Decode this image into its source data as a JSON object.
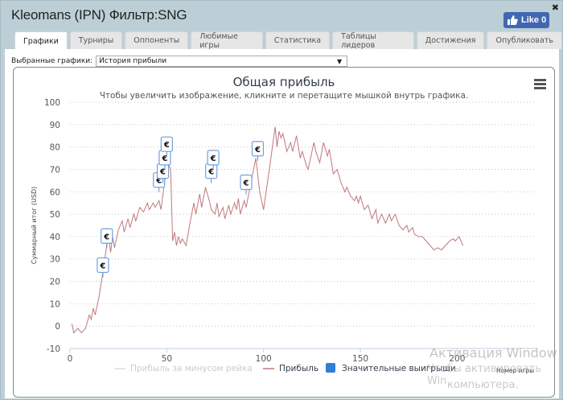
{
  "window": {
    "title": "Kleomans (IPN) Фильтр:SNG",
    "close_label": "✖",
    "like_label": "Like 0"
  },
  "tabs": [
    {
      "label": "Графики",
      "active": true
    },
    {
      "label": "Турниры"
    },
    {
      "label": "Оппоненты"
    },
    {
      "label": "Любимые игры"
    },
    {
      "label": "Статистика"
    },
    {
      "label": "Таблицы лидеров"
    },
    {
      "label": "Достижения"
    },
    {
      "label": "Опубликовать"
    }
  ],
  "selector": {
    "label": "Выбранные графики:",
    "value": "История прибыли",
    "arrow": "▼"
  },
  "watermark": {
    "line1": "Активация Window",
    "line2": "Чтобы активировать Win",
    "line3": "компьютера."
  },
  "chart_data": {
    "type": "line",
    "title": "Общая прибыль",
    "subtitle": "Чтобы увеличить изображение, кликните и перетащите мышкой внутрь графика.",
    "xlabel": "Номер игры",
    "ylabel": "Суммарный итог (USD)",
    "xlim": [
      0,
      240
    ],
    "ylim": [
      -10,
      100
    ],
    "x_ticks": [
      0,
      50,
      100,
      150,
      200
    ],
    "y_ticks": [
      -10,
      0,
      10,
      20,
      30,
      40,
      50,
      60,
      70,
      80,
      90,
      100
    ],
    "grid": true,
    "legend": [
      {
        "name": "Прибыль за минусом рейка",
        "color": "#cccccc",
        "hidden": true
      },
      {
        "name": "Прибыль",
        "color": "#c0787c"
      },
      {
        "name": "Значительные выигрыши",
        "color": "#2f7ed8",
        "marker": "€"
      }
    ],
    "legend_position": "bottom",
    "series": [
      {
        "name": "Прибыль",
        "color": "#c0787c",
        "points": [
          [
            1,
            1
          ],
          [
            2,
            -3
          ],
          [
            4,
            -1
          ],
          [
            6,
            -3
          ],
          [
            8,
            -1
          ],
          [
            10,
            5
          ],
          [
            11,
            3
          ],
          [
            12,
            8
          ],
          [
            13,
            5
          ],
          [
            15,
            13
          ],
          [
            17,
            24
          ],
          [
            18,
            30
          ],
          [
            19,
            36
          ],
          [
            20,
            40
          ],
          [
            21,
            33
          ],
          [
            22,
            40
          ],
          [
            23,
            35
          ],
          [
            25,
            43
          ],
          [
            27,
            47
          ],
          [
            28,
            42
          ],
          [
            30,
            48
          ],
          [
            31,
            44
          ],
          [
            33,
            50
          ],
          [
            34,
            47
          ],
          [
            36,
            53
          ],
          [
            38,
            51
          ],
          [
            40,
            55
          ],
          [
            41,
            52
          ],
          [
            43,
            55
          ],
          [
            44,
            53
          ],
          [
            46,
            56
          ],
          [
            47,
            52
          ],
          [
            49,
            65
          ],
          [
            50,
            69
          ],
          [
            51,
            72
          ],
          [
            52,
            70
          ],
          [
            53,
            38
          ],
          [
            54,
            42
          ],
          [
            55,
            36
          ],
          [
            56,
            40
          ],
          [
            57,
            37
          ],
          [
            58,
            39
          ],
          [
            60,
            36
          ],
          [
            62,
            46
          ],
          [
            64,
            55
          ],
          [
            65,
            50
          ],
          [
            67,
            59
          ],
          [
            68,
            53
          ],
          [
            70,
            62
          ],
          [
            72,
            56
          ],
          [
            73,
            52
          ],
          [
            75,
            50
          ],
          [
            76,
            55
          ],
          [
            77,
            49
          ],
          [
            79,
            53
          ],
          [
            80,
            48
          ],
          [
            82,
            54
          ],
          [
            83,
            50
          ],
          [
            85,
            55
          ],
          [
            86,
            52
          ],
          [
            87,
            57
          ],
          [
            88,
            50
          ],
          [
            90,
            56
          ],
          [
            91,
            53
          ],
          [
            93,
            62
          ],
          [
            96,
            75
          ],
          [
            98,
            60
          ],
          [
            100,
            52
          ],
          [
            103,
            70
          ],
          [
            106,
            89
          ],
          [
            107,
            80
          ],
          [
            108,
            87
          ],
          [
            109,
            84
          ],
          [
            110,
            86
          ],
          [
            112,
            78
          ],
          [
            114,
            82
          ],
          [
            115,
            78
          ],
          [
            117,
            85
          ],
          [
            119,
            75
          ],
          [
            120,
            78
          ],
          [
            122,
            72
          ],
          [
            123,
            70
          ],
          [
            124,
            74
          ],
          [
            126,
            82
          ],
          [
            127,
            78
          ],
          [
            129,
            73
          ],
          [
            131,
            82
          ],
          [
            133,
            76
          ],
          [
            134,
            79
          ],
          [
            136,
            68
          ],
          [
            138,
            70
          ],
          [
            140,
            64
          ],
          [
            142,
            60
          ],
          [
            143,
            62
          ],
          [
            145,
            58
          ],
          [
            147,
            56
          ],
          [
            148,
            58
          ],
          [
            149,
            55
          ],
          [
            150,
            58
          ],
          [
            152,
            52
          ],
          [
            154,
            54
          ],
          [
            156,
            48
          ],
          [
            158,
            52
          ],
          [
            159,
            46
          ],
          [
            161,
            50
          ],
          [
            163,
            46
          ],
          [
            165,
            50
          ],
          [
            166,
            47
          ],
          [
            168,
            50
          ],
          [
            170,
            45
          ],
          [
            172,
            43
          ],
          [
            174,
            45
          ],
          [
            175,
            42
          ],
          [
            177,
            44
          ],
          [
            178,
            41
          ],
          [
            180,
            40
          ],
          [
            182,
            40
          ],
          [
            184,
            38
          ],
          [
            186,
            36
          ],
          [
            188,
            34
          ],
          [
            190,
            35
          ],
          [
            192,
            34
          ],
          [
            194,
            36
          ],
          [
            196,
            38
          ],
          [
            198,
            39
          ],
          [
            199,
            38
          ],
          [
            201,
            40
          ],
          [
            203,
            36
          ]
        ]
      }
    ],
    "markers": [
      {
        "x": 17,
        "y": 24,
        "label": "€"
      },
      {
        "x": 19,
        "y": 37,
        "label": "€"
      },
      {
        "x": 46,
        "y": 62,
        "label": "€"
      },
      {
        "x": 48,
        "y": 66,
        "label": "€"
      },
      {
        "x": 49,
        "y": 72,
        "label": "€"
      },
      {
        "x": 50,
        "y": 78,
        "label": "€"
      },
      {
        "x": 73,
        "y": 66,
        "label": "€"
      },
      {
        "x": 74,
        "y": 72,
        "label": "€"
      },
      {
        "x": 91,
        "y": 61,
        "label": "€"
      },
      {
        "x": 97,
        "y": 76,
        "label": "€"
      }
    ]
  }
}
